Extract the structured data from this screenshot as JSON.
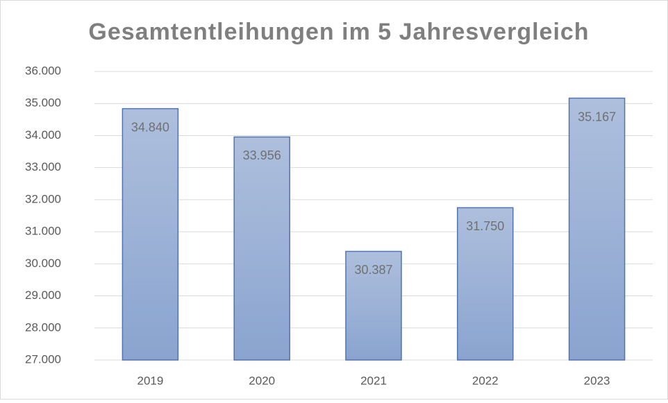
{
  "chart_data": {
    "type": "bar",
    "title": "Gesamtentleihungen im 5 Jahresvergleich",
    "categories": [
      "2019",
      "2020",
      "2021",
      "2022",
      "2023"
    ],
    "values": [
      34840,
      33956,
      30387,
      31750,
      35167
    ],
    "value_labels": [
      "34.840",
      "33.956",
      "30.387",
      "31.750",
      "35.167"
    ],
    "color": "#9bb1d8",
    "ylim": [
      27000,
      36000
    ],
    "yticks": [
      {
        "value": 27000,
        "label": "27.000"
      },
      {
        "value": 28000,
        "label": "28.000"
      },
      {
        "value": 29000,
        "label": "29.000"
      },
      {
        "value": 30000,
        "label": "30.000"
      },
      {
        "value": 31000,
        "label": "31.000"
      },
      {
        "value": 32000,
        "label": "32.000"
      },
      {
        "value": 33000,
        "label": "33.000"
      },
      {
        "value": 34000,
        "label": "34.000"
      },
      {
        "value": 35000,
        "label": "35.000"
      },
      {
        "value": 36000,
        "label": "36.000"
      }
    ],
    "grid": true
  }
}
